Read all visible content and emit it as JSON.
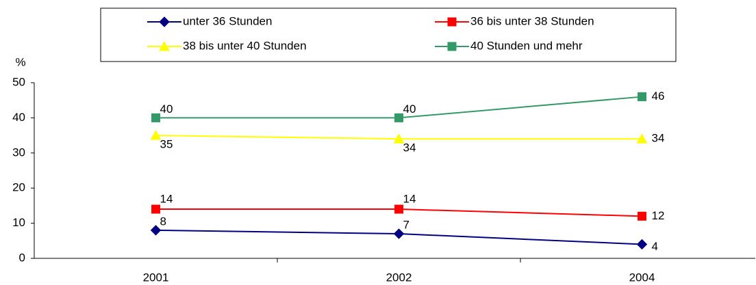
{
  "chart_data": {
    "type": "line",
    "y_label": "%",
    "categories": [
      "2001",
      "2002",
      "2004"
    ],
    "series": [
      {
        "name": "unter 36 Stunden",
        "color": "#000080",
        "marker": "diamond",
        "values": [
          8,
          7,
          4
        ]
      },
      {
        "name": "36 bis unter 38 Stunden",
        "color": "#ff0000",
        "marker": "square",
        "values": [
          14,
          14,
          12
        ]
      },
      {
        "name": "38 bis unter 40 Stunden",
        "color": "#ffff00",
        "marker": "triangle",
        "values": [
          35,
          34,
          34
        ]
      },
      {
        "name": "40 Stunden und mehr",
        "color": "#339966",
        "marker": "square",
        "values": [
          40,
          40,
          46
        ]
      }
    ],
    "ylim": [
      0,
      50
    ],
    "yticks": [
      0,
      10,
      20,
      30,
      40,
      50
    ],
    "grid": false,
    "legend": "top"
  }
}
